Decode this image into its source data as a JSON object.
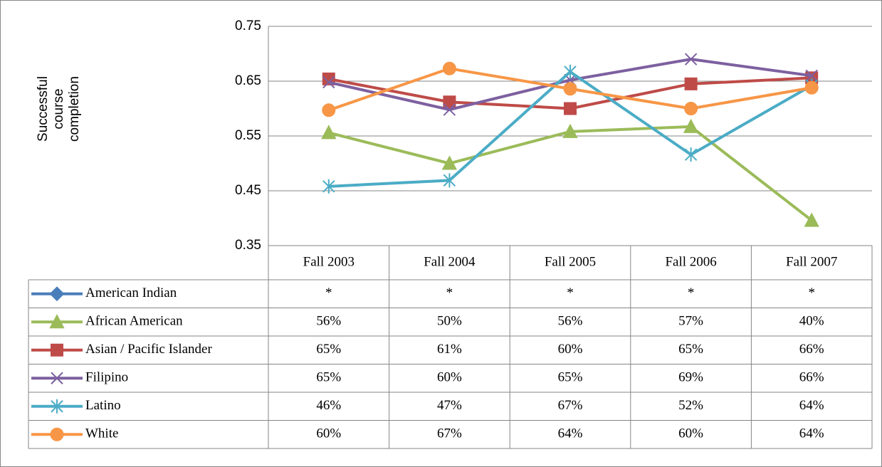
{
  "chart_data": {
    "type": "line",
    "y_label": "Successful course completion",
    "categories": [
      "Fall 2003",
      "Fall 2004",
      "Fall 2005",
      "Fall 2006",
      "Fall 2007"
    ],
    "ylim": [
      0.35,
      0.75
    ],
    "yticks": [
      0.35,
      0.45,
      0.55,
      0.65,
      0.75
    ],
    "grid": true,
    "series": [
      {
        "name": "American Indian",
        "color": "#4a7ebb",
        "marker": "diamond",
        "values": [
          null,
          null,
          null,
          null,
          null
        ],
        "value_labels": [
          "*",
          "*",
          "*",
          "*",
          "*"
        ]
      },
      {
        "name": "African American",
        "color": "#9bbb59",
        "marker": "triangle",
        "values": [
          0.556,
          0.5,
          0.558,
          0.567,
          0.396
        ],
        "value_labels": [
          "56%",
          "50%",
          "56%",
          "57%",
          "40%"
        ]
      },
      {
        "name": "Asian / Pacific Islander",
        "color": "#be4b48",
        "marker": "square",
        "values": [
          0.654,
          0.612,
          0.6,
          0.645,
          0.656
        ],
        "value_labels": [
          "65%",
          "61%",
          "60%",
          "65%",
          "66%"
        ]
      },
      {
        "name": "Filipino",
        "color": "#7d60a0",
        "marker": "x",
        "values": [
          0.648,
          0.598,
          0.652,
          0.69,
          0.66
        ],
        "value_labels": [
          "65%",
          "60%",
          "65%",
          "69%",
          "66%"
        ]
      },
      {
        "name": "Latino",
        "color": "#4bacc6",
        "marker": "star",
        "values": [
          0.458,
          0.469,
          0.667,
          0.516,
          0.642
        ],
        "value_labels": [
          "46%",
          "47%",
          "67%",
          "52%",
          "64%"
        ]
      },
      {
        "name": "White",
        "color": "#f79646",
        "marker": "circle",
        "values": [
          0.597,
          0.673,
          0.636,
          0.6,
          0.638
        ],
        "value_labels": [
          "60%",
          "67%",
          "64%",
          "60%",
          "64%"
        ]
      }
    ]
  }
}
